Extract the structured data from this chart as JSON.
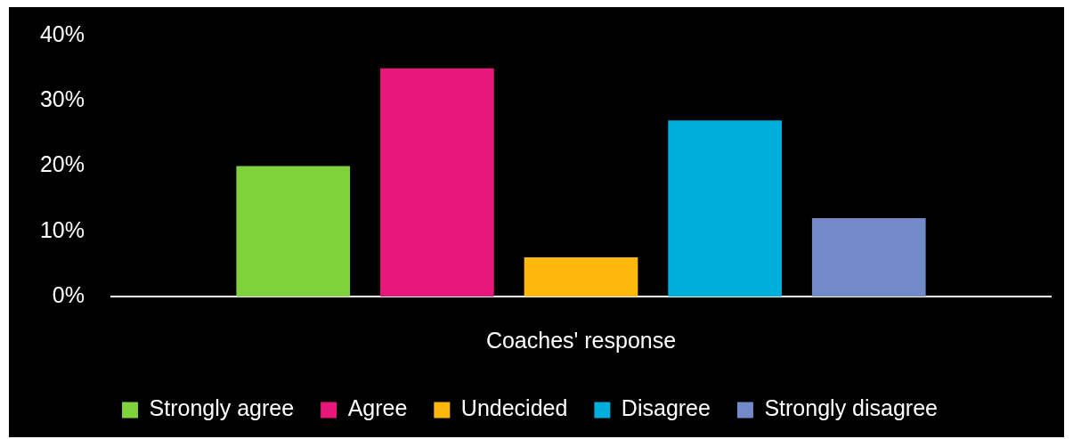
{
  "chart_data": {
    "type": "bar",
    "categories": [
      "Coaches' response"
    ],
    "series": [
      {
        "name": "Strongly agree",
        "color": "#80d23c",
        "values": [
          20
        ]
      },
      {
        "name": "Agree",
        "color": "#e8177a",
        "values": [
          35
        ]
      },
      {
        "name": "Undecided",
        "color": "#feb70b",
        "values": [
          6
        ]
      },
      {
        "name": "Disagree",
        "color": "#00aedc",
        "values": [
          27
        ]
      },
      {
        "name": "Strongly disagree",
        "color": "#738ac8",
        "values": [
          12
        ]
      }
    ],
    "ylim": [
      0,
      40
    ],
    "yticks": [
      {
        "value": 0,
        "label": "0%"
      },
      {
        "value": 10,
        "label": "10%"
      },
      {
        "value": 20,
        "label": "20%"
      },
      {
        "value": 30,
        "label": "30%"
      },
      {
        "value": 40,
        "label": "40%"
      }
    ],
    "legend": "bottom"
  }
}
